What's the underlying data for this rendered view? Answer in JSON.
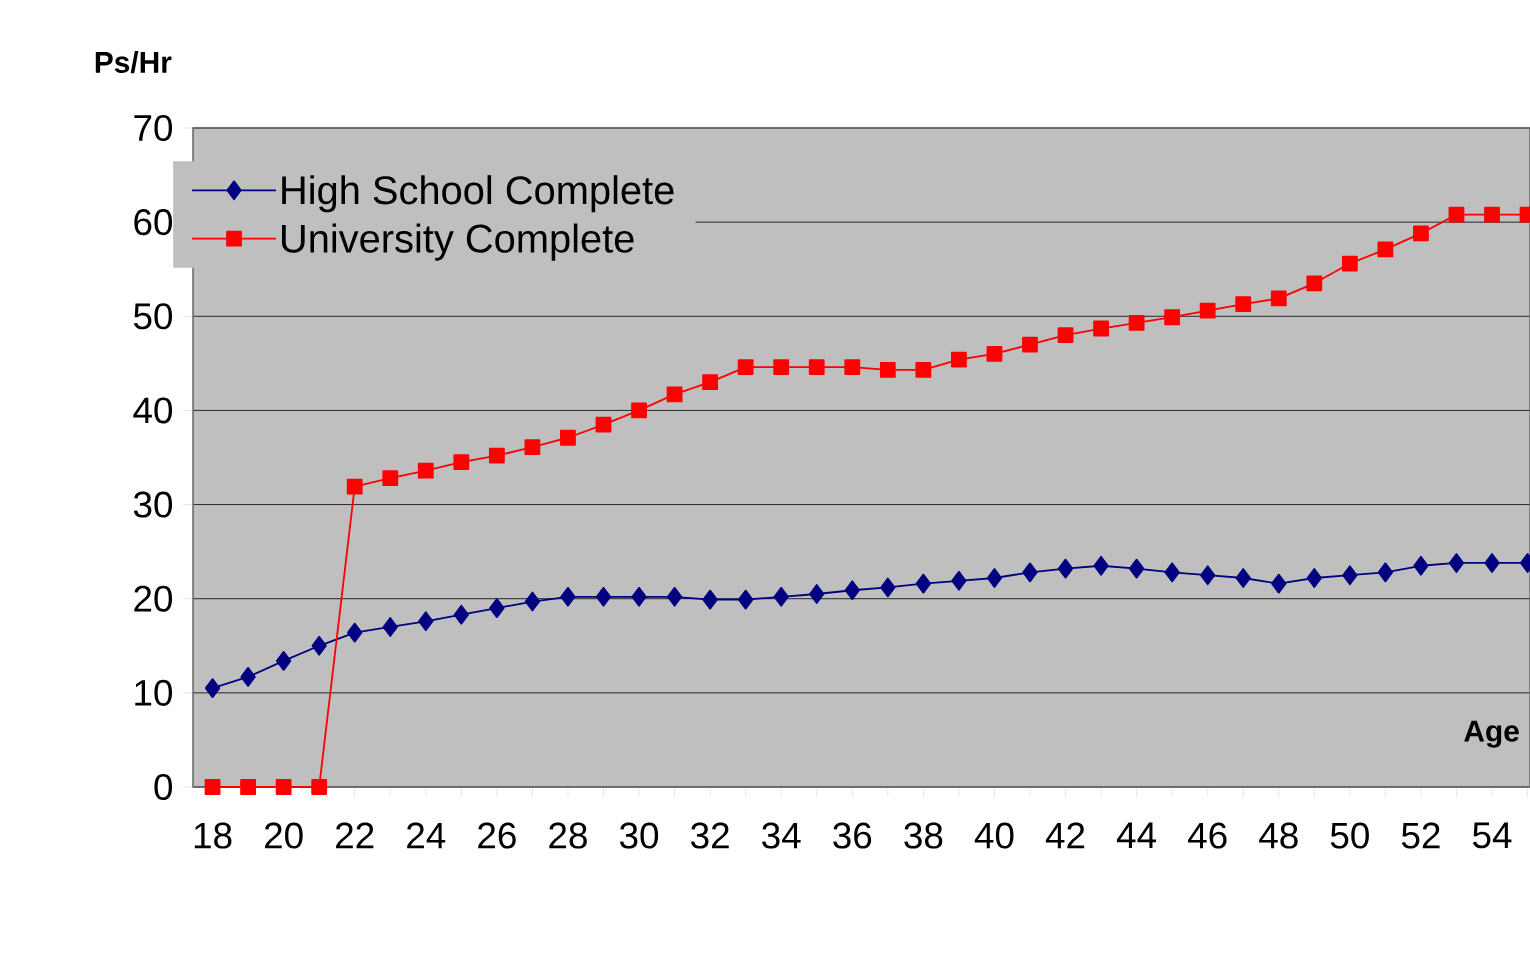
{
  "chart_data": {
    "type": "line",
    "xlabel": "Age",
    "ylabel": "Ps/Hr",
    "categories": [
      "18",
      null,
      "20",
      null,
      "22",
      null,
      "24",
      null,
      "26",
      null,
      "28",
      null,
      "30",
      null,
      "32",
      null,
      "34",
      null,
      "36",
      null,
      "38",
      null,
      "40",
      null,
      "42",
      null,
      "44",
      null,
      "46",
      null,
      "48",
      null,
      "50",
      null,
      "52",
      null,
      "54",
      null
    ],
    "series": [
      {
        "name": "High School Complete",
        "color": "#000080",
        "marker": "diamond",
        "values": [
          10.5,
          11.7,
          13.4,
          15.0,
          16.4,
          17.0,
          17.6,
          18.3,
          19.0,
          19.7,
          20.2,
          20.2,
          20.2,
          20.2,
          19.9,
          19.9,
          20.2,
          20.5,
          20.9,
          21.2,
          21.6,
          21.9,
          22.2,
          22.8,
          23.2,
          23.5,
          23.2,
          22.8,
          22.5,
          22.2,
          21.6,
          22.2,
          22.5,
          22.8,
          23.5,
          23.8,
          23.8,
          23.8
        ]
      },
      {
        "name": "University Complete",
        "color": "#ff0000",
        "marker": "square",
        "values": [
          0,
          0,
          0,
          0,
          31.9,
          32.8,
          33.6,
          34.5,
          35.2,
          36.1,
          37.1,
          38.5,
          40.0,
          41.7,
          43.0,
          44.6,
          44.6,
          44.6,
          44.6,
          44.3,
          44.3,
          45.4,
          46.0,
          47.0,
          48.0,
          48.7,
          49.3,
          49.9,
          50.6,
          51.3,
          51.9,
          53.5,
          55.6,
          57.1,
          58.8,
          60.8,
          60.8,
          60.8
        ]
      }
    ],
    "ylim": [
      0,
      70
    ],
    "yticks": [
      0,
      10,
      20,
      30,
      40,
      50,
      60,
      70
    ],
    "grid": "y",
    "legend": "top left",
    "line_style": "solid"
  }
}
